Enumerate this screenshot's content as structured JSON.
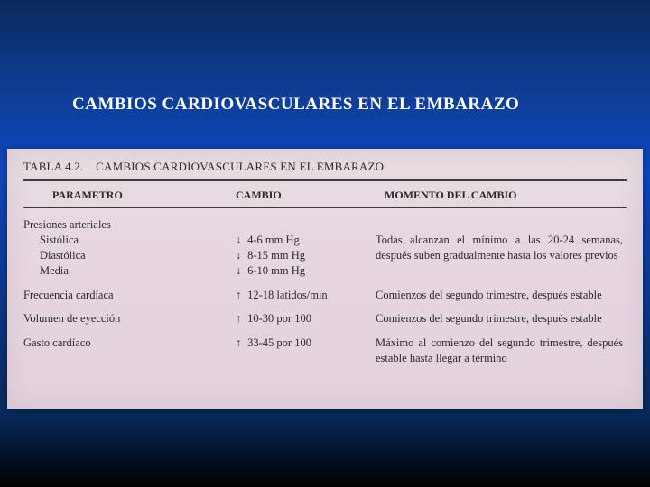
{
  "slide": {
    "title": "CAMBIOS CARDIOVASCULARES EN EL EMBARAZO"
  },
  "table": {
    "caption_prefix": "TABLA 4.2.",
    "caption_text": "CAMBIOS CARDIOVASCULARES EN EL EMBARAZO",
    "columns": {
      "c1": "PARAMETRO",
      "c2": "CAMBIO",
      "c3": "MOMENTO DEL CAMBIO"
    },
    "arrows": {
      "down": "↓",
      "up": "↑"
    },
    "groups": [
      {
        "label": "Presiones arteriales",
        "timing": "Todas alcanzan el mínimo a las 20-24 semanas, después suben gradualmente hasta los valores previos",
        "rows": [
          {
            "name": "Sistólica",
            "dir": "down",
            "value": "4-6 mm Hg"
          },
          {
            "name": "Diastólica",
            "dir": "down",
            "value": "8-15 mm Hg"
          },
          {
            "name": "Media",
            "dir": "down",
            "value": "6-10 mm Hg"
          }
        ]
      }
    ],
    "singles": [
      {
        "name": "Frecuencia cardíaca",
        "dir": "up",
        "value": "12-18 latidos/min",
        "timing": "Comienzos del segundo trimestre, después estable"
      },
      {
        "name": "Volumen de eyección",
        "dir": "up",
        "value": "10-30 por 100",
        "timing": "Comienzos del segundo trimestre, después estable"
      },
      {
        "name": "Gasto cardíaco",
        "dir": "up",
        "value": "33-45 por 100",
        "timing": "Máximo al comienzo del segundo trimestre, después estable hasta llegar a término"
      }
    ]
  },
  "style": {
    "bg_gradient": [
      "#0a2a5c",
      "#0d3a8a",
      "#1048c0",
      "#0a2a5c",
      "#000000"
    ],
    "table_bg": "#e6d6e0",
    "text_color": "#2a2a2a",
    "title_color": "#ffffff",
    "font_family": "Times New Roman"
  }
}
